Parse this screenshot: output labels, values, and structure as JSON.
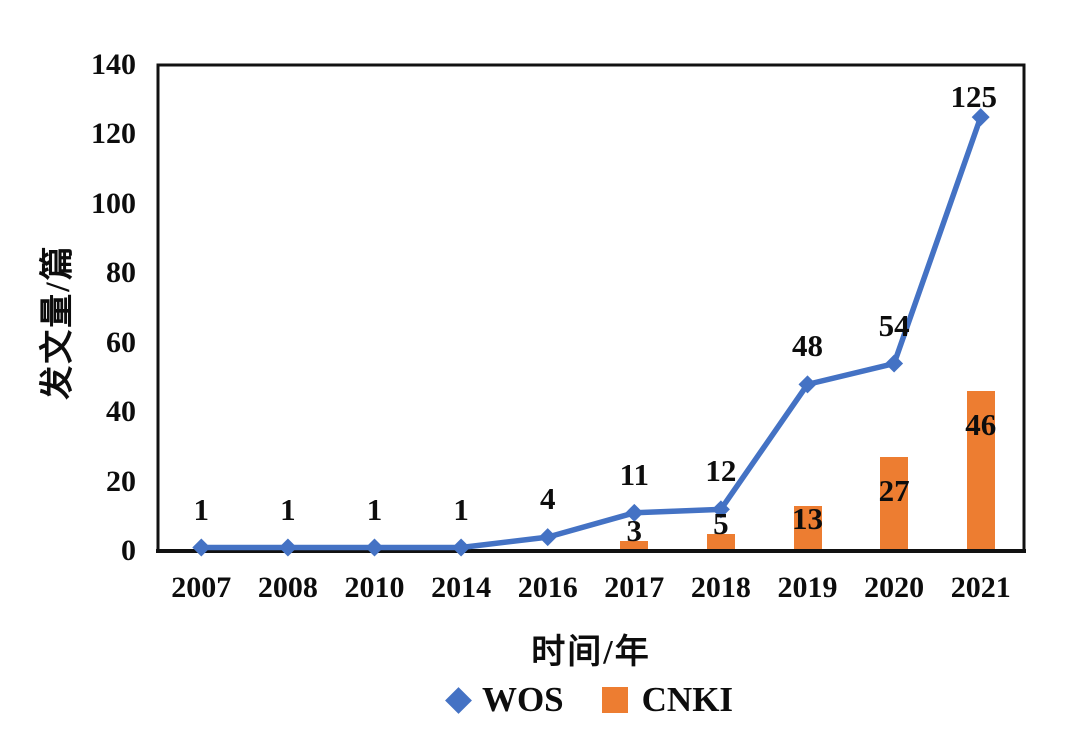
{
  "chart_data": {
    "type": "combo",
    "categories": [
      "2007",
      "2008",
      "2010",
      "2014",
      "2016",
      "2017",
      "2018",
      "2019",
      "2020",
      "2021"
    ],
    "series": [
      {
        "name": "WOS",
        "type": "line",
        "shape": "diamond",
        "color": "#4472C4",
        "values": [
          1,
          1,
          1,
          1,
          4,
          11,
          12,
          48,
          54,
          125
        ]
      },
      {
        "name": "CNKI",
        "type": "bar",
        "shape": "square",
        "color": "#ED7D31",
        "values": [
          null,
          null,
          null,
          null,
          null,
          3,
          5,
          13,
          27,
          46
        ]
      }
    ],
    "title": "",
    "xlabel": "时间/年",
    "ylabel": "发文量/篇",
    "ylim": [
      0,
      140
    ],
    "yticks": [
      0,
      20,
      40,
      60,
      80,
      100,
      120,
      140
    ],
    "grid": false,
    "plot_border": true,
    "data_labels": true,
    "legend_position": "bottom",
    "axis_color": "#111111",
    "text_color": "#0d0d0d"
  }
}
